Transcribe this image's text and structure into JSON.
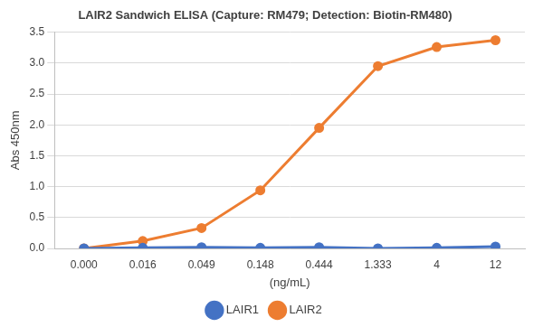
{
  "chart_data": {
    "type": "line",
    "title": "LAIR2 Sandwich ELISA (Capture: RM479; Detection: Biotin-RM480)",
    "x_label": "(ng/mL)",
    "y_label": "Abs 450nm",
    "categories": [
      "0.000",
      "0.016",
      "0.049",
      "0.148",
      "0.444",
      "1.333",
      "4",
      "12"
    ],
    "series": [
      {
        "name": "LAIR1",
        "color": "#4472c4",
        "marker": "circle",
        "values": [
          0,
          0.01,
          0.02,
          0.01,
          0.02,
          0.0,
          0.01,
          0.03
        ]
      },
      {
        "name": "LAIR2",
        "color": "#ed7d31",
        "marker": "circle",
        "values": [
          0,
          0.12,
          0.33,
          0.94,
          1.95,
          2.95,
          3.26,
          3.37
        ]
      }
    ],
    "ylim": [
      0,
      3.5
    ],
    "yticks": [
      {
        "value": 0,
        "label": "0.0"
      },
      0.5,
      {
        "value": 1,
        "label": "1.0"
      },
      1.5,
      {
        "value": 2,
        "label": "2.0"
      },
      2.5,
      {
        "value": 3,
        "label": "3.0"
      },
      3.5
    ],
    "grid": true,
    "legend": "bottom"
  }
}
